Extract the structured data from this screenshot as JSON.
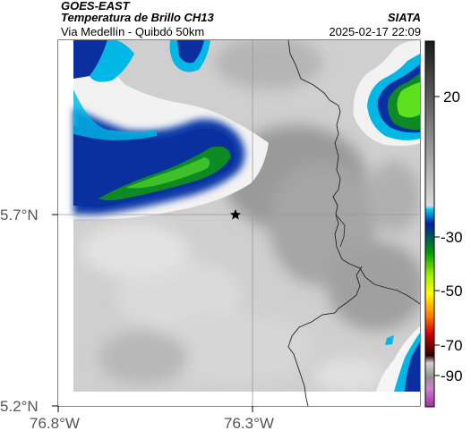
{
  "header": {
    "title": "GOES-EAST",
    "subtitle": "Temperatura de Brillo CH13",
    "route": "Via Medellín - Quibdó 50km",
    "agency": "SIATA",
    "datetime": "2025-02-17 22:09"
  },
  "map": {
    "longitude_ticks": [
      "76.8°W",
      "76.3°W"
    ],
    "latitude_ticks": [
      "5.7°N",
      "5.2°N"
    ],
    "marker": "star-icon"
  },
  "colorbar": {
    "ticks": [
      "20",
      "-30",
      "-50",
      "-70",
      "-90"
    ],
    "colors": [
      "#2a2a2a",
      "#8c8c8c",
      "#d9d9d9",
      "#00b7e6",
      "#0a2f9f",
      "#0e8a25",
      "#5fe01e",
      "#ffff00",
      "#ff7f00",
      "#d40000",
      "#3a0000",
      "#d0d0d0",
      "#c050c0"
    ]
  }
}
